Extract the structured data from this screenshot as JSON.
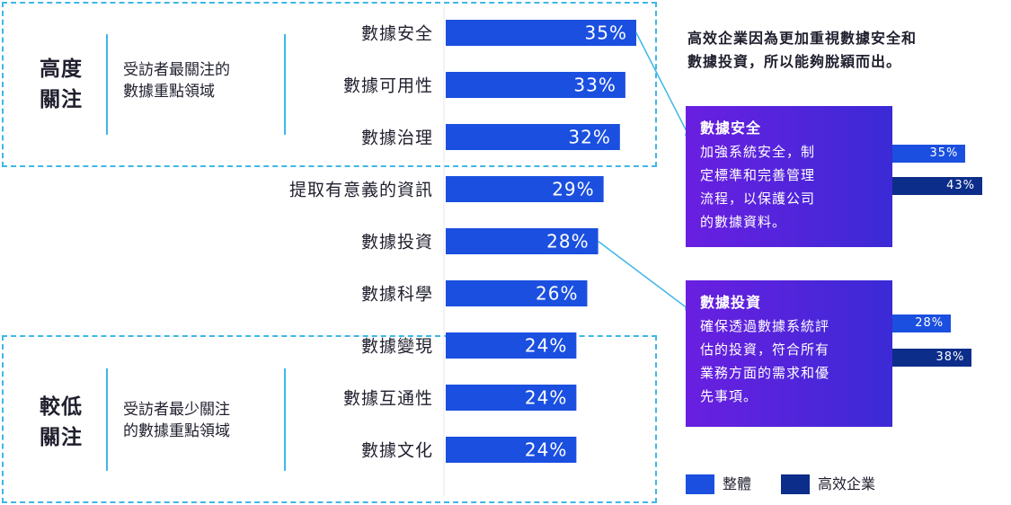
{
  "groups": {
    "high": {
      "title": "高度\n關注",
      "desc": "受訪者最關注的\n數據重點領域"
    },
    "low": {
      "title": "較低\n關注",
      "desc": "受訪者最少關注\n的數據重點領域"
    }
  },
  "headline": "高效企業因為更加重視數據安全和\n數據投資，所以能夠脫穎而出。",
  "callouts": [
    {
      "title": "數據安全",
      "body": "加強系統安全，制\n定標準和完善管理\n流程，以保護公司\n的數據資料。",
      "overall": 35,
      "overall_label": "35%",
      "top": 43,
      "top_label": "43%"
    },
    {
      "title": "數據投資",
      "body": "確保透過數據系統評\n估的投資，符合所有\n業務方面的需求和優\n先事項。",
      "overall": 28,
      "overall_label": "28%",
      "top": 38,
      "top_label": "38%"
    }
  ],
  "legend": {
    "overall": "整體",
    "top": "高效企業"
  },
  "colors": {
    "overall": "#1a4fe0",
    "top": "#0c2d8a",
    "accent": "#3fb7e6",
    "callout_start": "#6a1fe0",
    "callout_end": "#3b2ad6"
  },
  "chart_data": {
    "type": "bar",
    "orientation": "horizontal",
    "categories": [
      "數據安全",
      "數據可用性",
      "數據治理",
      "提取有意義的資訊",
      "數據投資",
      "數據科學",
      "數據變現",
      "數據互通性",
      "數據文化"
    ],
    "values": [
      35,
      33,
      32,
      29,
      28,
      26,
      24,
      24,
      24
    ],
    "labels": [
      "35%",
      "33%",
      "32%",
      "29%",
      "28%",
      "26%",
      "24%",
      "24%",
      "24%"
    ],
    "series": [
      {
        "name": "整體",
        "values": [
          35,
          33,
          32,
          29,
          28,
          26,
          24,
          24,
          24
        ]
      }
    ],
    "xlim": [
      0,
      35
    ]
  }
}
